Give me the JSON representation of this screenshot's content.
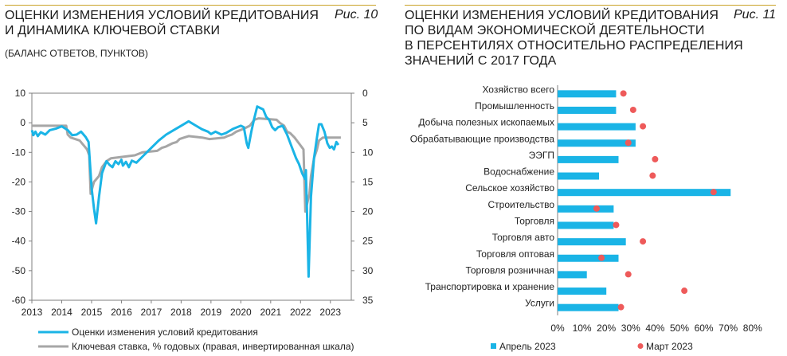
{
  "fig10": {
    "title": "ОЦЕНКИ ИЗМЕНЕНИЯ УСЛОВИЙ КРЕДИТОВАНИЯ И ДИНАМИКА КЛЮЧЕВОЙ СТАВКИ",
    "title_lines": [
      "ОЦЕНКИ ИЗМЕНЕНИЯ УСЛОВИЙ КРЕДИТОВАНИЯ",
      "И ДИНАМИКА КЛЮЧЕВОЙ СТАВКИ"
    ],
    "fig_label": "Рис. 10",
    "subtitle": "(БАЛАНС ОТВЕТОВ, ПУНКТОВ)"
  },
  "fig11": {
    "title": "ОЦЕНКИ ИЗМЕНЕНИЯ УСЛОВИЙ КРЕДИТОВАНИЯ ПО ВИДАМ ЭКОНОМИЧЕСКОЙ ДЕЯТЕЛЬНОСТИ В ПЕРСЕНТИЛЯХ ОТНОСИТЕЛЬНО РАСПРЕДЕЛЕНИЯ ЗНАЧЕНИЙ С 2017 ГОДА",
    "title_lines": [
      "ОЦЕНКИ ИЗМЕНЕНИЯ УСЛОВИЙ КРЕДИТОВАНИЯ",
      "ПО ВИДАМ ЭКОНОМИЧЕСКОЙ ДЕЯТЕЛЬНОСТИ",
      "В ПЕРСЕНТИЛЯХ ОТНОСИТЕЛЬНО РАСПРЕДЕЛЕНИЯ",
      "ЗНАЧЕНИЙ С 2017 ГОДА"
    ],
    "fig_label": "Рис. 11"
  },
  "colors": {
    "accent_rule": "#c9a227",
    "cyan": "#1ab4e6",
    "gray": "#a6a6a6",
    "red": "#ee5a5a"
  },
  "chart_data": [
    {
      "type": "line",
      "x_ticks": [
        "2013",
        "2014",
        "2015",
        "2016",
        "2017",
        "2018",
        "2019",
        "2020",
        "2021",
        "2022",
        "2023"
      ],
      "ylim_left": [
        -60,
        10
      ],
      "ylim_right": [
        35,
        0
      ],
      "left_ticks": [
        "10",
        "0",
        "-10",
        "-20",
        "-30",
        "-40",
        "-50",
        "-60"
      ],
      "right_ticks": [
        "0",
        "5",
        "10",
        "15",
        "20",
        "25",
        "30",
        "35"
      ],
      "grid": false,
      "legend_position": "bottom",
      "series": [
        {
          "name": "Оценки изменения условий кредитования",
          "axis": "left",
          "points": [
            [
              2013.0,
              -2.5
            ],
            [
              2013.05,
              -4.2
            ],
            [
              2013.12,
              -3.0
            ],
            [
              2013.2,
              -4.5
            ],
            [
              2013.3,
              -3.2
            ],
            [
              2013.45,
              -4.0
            ],
            [
              2013.6,
              -2.5
            ],
            [
              2013.8,
              -2.0
            ],
            [
              2014.0,
              -1.2
            ],
            [
              2014.2,
              -2.5
            ],
            [
              2014.35,
              -4.2
            ],
            [
              2014.5,
              -4.0
            ],
            [
              2014.65,
              -3.0
            ],
            [
              2014.8,
              -4.8
            ],
            [
              2014.9,
              -6.5
            ],
            [
              2015.0,
              -22.0
            ],
            [
              2015.08,
              -29.0
            ],
            [
              2015.15,
              -34.0
            ],
            [
              2015.25,
              -25.0
            ],
            [
              2015.35,
              -17.0
            ],
            [
              2015.5,
              -13.0
            ],
            [
              2015.6,
              -14.2
            ],
            [
              2015.7,
              -15.0
            ],
            [
              2015.8,
              -13.0
            ],
            [
              2015.9,
              -14.0
            ],
            [
              2016.0,
              -12.5
            ],
            [
              2016.05,
              -14.5
            ],
            [
              2016.15,
              -13.2
            ],
            [
              2016.25,
              -15.0
            ],
            [
              2016.35,
              -12.8
            ],
            [
              2016.5,
              -13.5
            ],
            [
              2016.75,
              -11.0
            ],
            [
              2017.0,
              -8.5
            ],
            [
              2017.25,
              -6.0
            ],
            [
              2017.5,
              -4.0
            ],
            [
              2017.75,
              -2.5
            ],
            [
              2018.0,
              -1.0
            ],
            [
              2018.25,
              0.5
            ],
            [
              2018.5,
              -1.0
            ],
            [
              2018.7,
              -2.2
            ],
            [
              2018.9,
              -3.0
            ],
            [
              2019.0,
              -3.8
            ],
            [
              2019.15,
              -3.0
            ],
            [
              2019.35,
              -4.0
            ],
            [
              2019.5,
              -3.5
            ],
            [
              2019.75,
              -2.0
            ],
            [
              2020.0,
              -1.0
            ],
            [
              2020.1,
              -1.5
            ],
            [
              2020.2,
              -7.0
            ],
            [
              2020.25,
              -8.5
            ],
            [
              2020.35,
              -3.0
            ],
            [
              2020.45,
              1.5
            ],
            [
              2020.55,
              5.5
            ],
            [
              2020.65,
              5.0
            ],
            [
              2020.75,
              4.5
            ],
            [
              2020.85,
              2.0
            ],
            [
              2020.95,
              1.0
            ],
            [
              2021.05,
              -1.5
            ],
            [
              2021.15,
              -2.5
            ],
            [
              2021.25,
              -1.5
            ],
            [
              2021.4,
              -1.0
            ],
            [
              2021.55,
              -4.0
            ],
            [
              2021.7,
              -8.0
            ],
            [
              2021.85,
              -12.0
            ],
            [
              2021.95,
              -14.0
            ],
            [
              2022.05,
              -17.0
            ],
            [
              2022.15,
              -19.0
            ],
            [
              2022.18,
              -16.0
            ],
            [
              2022.22,
              -31.0
            ],
            [
              2022.27,
              -52.0
            ],
            [
              2022.35,
              -25.0
            ],
            [
              2022.45,
              -12.0
            ],
            [
              2022.55,
              -5.0
            ],
            [
              2022.62,
              -0.5
            ],
            [
              2022.7,
              -0.5
            ],
            [
              2022.8,
              -3.0
            ],
            [
              2022.9,
              -7.0
            ],
            [
              2022.98,
              -8.5
            ],
            [
              2023.05,
              -8.0
            ],
            [
              2023.12,
              -9.0
            ],
            [
              2023.2,
              -6.5
            ],
            [
              2023.27,
              -7.5
            ]
          ]
        },
        {
          "name": "Ключевая ставка, % годовых (правая, инвертированная шкала)",
          "axis": "right",
          "points": [
            [
              2013.0,
              5.5
            ],
            [
              2013.6,
              5.5
            ],
            [
              2013.7,
              5.5
            ],
            [
              2014.15,
              5.5
            ],
            [
              2014.2,
              7.0
            ],
            [
              2014.3,
              7.5
            ],
            [
              2014.6,
              8.0
            ],
            [
              2014.85,
              9.5
            ],
            [
              2014.92,
              10.5
            ],
            [
              2014.97,
              17.0
            ],
            [
              2015.08,
              15.0
            ],
            [
              2015.25,
              14.0
            ],
            [
              2015.35,
              12.5
            ],
            [
              2015.5,
              11.5
            ],
            [
              2015.65,
              11.0
            ],
            [
              2016.45,
              10.5
            ],
            [
              2016.7,
              10.0
            ],
            [
              2017.2,
              9.75
            ],
            [
              2017.35,
              9.25
            ],
            [
              2017.5,
              9.0
            ],
            [
              2017.7,
              8.5
            ],
            [
              2017.85,
              8.25
            ],
            [
              2017.95,
              7.75
            ],
            [
              2018.1,
              7.5
            ],
            [
              2018.25,
              7.25
            ],
            [
              2018.7,
              7.5
            ],
            [
              2018.95,
              7.75
            ],
            [
              2019.45,
              7.5
            ],
            [
              2019.55,
              7.25
            ],
            [
              2019.7,
              7.0
            ],
            [
              2019.85,
              6.5
            ],
            [
              2020.1,
              6.0
            ],
            [
              2020.3,
              5.5
            ],
            [
              2020.45,
              4.5
            ],
            [
              2020.6,
              4.25
            ],
            [
              2021.2,
              4.5
            ],
            [
              2021.3,
              5.0
            ],
            [
              2021.45,
              5.5
            ],
            [
              2021.55,
              6.5
            ],
            [
              2021.65,
              6.75
            ],
            [
              2021.8,
              7.5
            ],
            [
              2021.95,
              8.5
            ],
            [
              2022.1,
              9.5
            ],
            [
              2022.16,
              20.0
            ],
            [
              2022.3,
              17.0
            ],
            [
              2022.35,
              14.0
            ],
            [
              2022.45,
              11.0
            ],
            [
              2022.55,
              9.5
            ],
            [
              2022.62,
              8.0
            ],
            [
              2022.75,
              7.5
            ],
            [
              2023.0,
              7.5
            ],
            [
              2023.35,
              7.5
            ]
          ]
        }
      ]
    },
    {
      "type": "bar",
      "orientation": "horizontal",
      "categories": [
        "Хозяйство всего",
        "Промышленность",
        "Добыча полезных ископаемых",
        "Обрабатывающие производства",
        "ЭЭГП",
        "Водоснабжение",
        "Сельское хозяйство",
        "Строительство",
        "Торговля",
        "Торговля авто",
        "Торговля оптовая",
        "Торговля розничная",
        "Транспортировка и хранение",
        "Услуги"
      ],
      "x_ticks": [
        "0%",
        "10%",
        "20%",
        "30%",
        "40%",
        "50%",
        "60%",
        "70%",
        "80%"
      ],
      "xlim": [
        0,
        80
      ],
      "grid": false,
      "legend_position": "bottom",
      "series": [
        {
          "name": "Апрель 2023",
          "marker": "bar",
          "values": [
            24,
            24,
            32,
            32,
            25,
            17,
            71,
            23,
            23,
            28,
            25,
            12,
            20,
            25
          ]
        },
        {
          "name": "Март 2023",
          "marker": "dot",
          "values": [
            27,
            31,
            35,
            29,
            40,
            39,
            64,
            16,
            24,
            35,
            18,
            29,
            52,
            26
          ]
        }
      ]
    }
  ]
}
